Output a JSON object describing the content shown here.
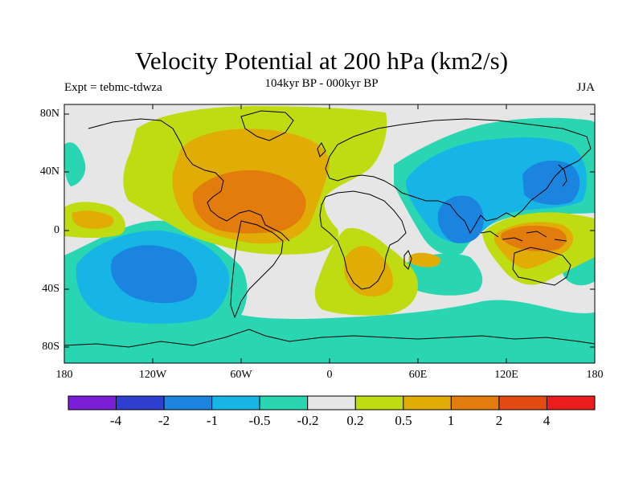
{
  "figure": {
    "title": "Velocity Potential at 200 hPa (km2/s)",
    "left_string": "Expt = tebmc-tdwza",
    "center_string": "104kyr BP - 000kyr BP",
    "right_string": "JJA"
  },
  "map": {
    "projection": "cylindrical-equidistant",
    "lon_range": [
      -180,
      180
    ],
    "lat_range": [
      -90,
      90
    ],
    "y_tick_labels": [
      "80N",
      "40N",
      "0",
      "40S",
      "80S"
    ],
    "x_tick_labels": [
      "180",
      "120W",
      "60W",
      "0",
      "60E",
      "120E",
      "180"
    ]
  },
  "colorbar": {
    "colors": [
      "#7a1ed8",
      "#2f3fd0",
      "#1a84de",
      "#17b5e6",
      "#2ad6b2",
      "#e6e6e6",
      "#bfdc12",
      "#e0ac05",
      "#e27c0c",
      "#e34b12",
      "#ea1d1c"
    ],
    "labels": [
      "-4",
      "-2",
      "-1",
      "-0.5",
      "-0.2",
      "0.2",
      "0.5",
      "1",
      "2",
      "4"
    ]
  },
  "colors": {
    "background": "#e6e6e6",
    "lvl_neg_0_5": "#17b5e6",
    "lvl_neg_0_2": "#2ad6b2",
    "lvl_pos_0_2": "#bfdc12",
    "lvl_pos_0_5": "#e0ac05",
    "lvl_pos_1": "#e27c0c",
    "lvl_neg_1": "#1a84de"
  }
}
